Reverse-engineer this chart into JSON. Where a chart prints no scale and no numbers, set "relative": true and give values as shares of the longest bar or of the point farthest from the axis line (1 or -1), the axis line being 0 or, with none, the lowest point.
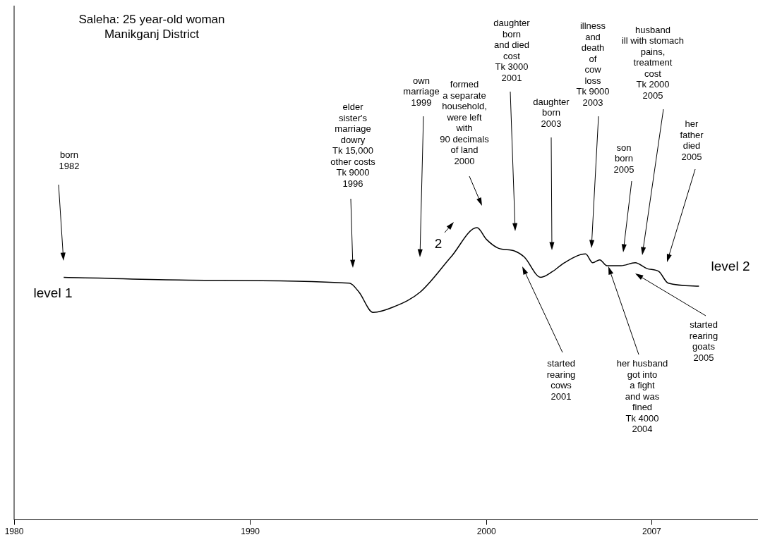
{
  "chart_data": {
    "type": "line",
    "title": "Saleha: 25 year-old woman",
    "subtitle": "Manikganj District",
    "relative": true,
    "xlim": [
      1980,
      2011.5
    ],
    "xticks": [
      1980,
      1990,
      2000,
      2007
    ],
    "legend": false,
    "grid": false,
    "marker": "none",
    "line_style": "solid",
    "x": [
      1982.1,
      1988.4,
      1994.2,
      1994.6,
      1995.2,
      1996.1,
      1997.2,
      1998.5,
      1999.6,
      2000.0,
      2000.5,
      2001.2,
      2001.6,
      2002.3,
      2002.8,
      2003.3,
      2004.2,
      2004.5,
      2004.8,
      2005.1,
      2005.7,
      2006.3,
      2006.8,
      2007.3,
      2007.7,
      2009.0
    ],
    "series": [
      {
        "color": "#000000",
        "values": [
          0.83,
          0.82,
          0.81,
          0.78,
          0.71,
          0.73,
          0.78,
          0.9,
          1.0,
          0.96,
          0.93,
          0.92,
          0.9,
          0.83,
          0.85,
          0.88,
          0.91,
          0.88,
          0.89,
          0.87,
          0.87,
          0.88,
          0.86,
          0.85,
          0.81,
          0.8
        ]
      }
    ],
    "annotations": [
      "born\n1982",
      "elder\nsister's\nmarriage\ndowry\nTk 15,000\nother costs\nTk 9000\n1996",
      "own\nmarriage\n1999",
      "formed\na separate\nhousehold,\nwere left\nwith\n90 decimals\nof land\n2000",
      "daughter\nborn\nand died\ncost\nTk 3000\n2001",
      "daughter\nborn\n2003",
      "illness\nand\ndeath\nof\ncow\nloss\nTk 9000\n2003",
      "son\nborn\n2005",
      "husband\nill with stomach\npains,\ntreatment\ncost\nTk 2000\n2005",
      "her\nfather\ndied\n2005",
      "started\nrearing\ncows\n2001",
      "her husband\ngot into\na fight\nand was\nfined\nTk 4000\n2004",
      "started\nrearing\ngoats\n2005",
      "2",
      "level 1",
      "level 2"
    ]
  }
}
